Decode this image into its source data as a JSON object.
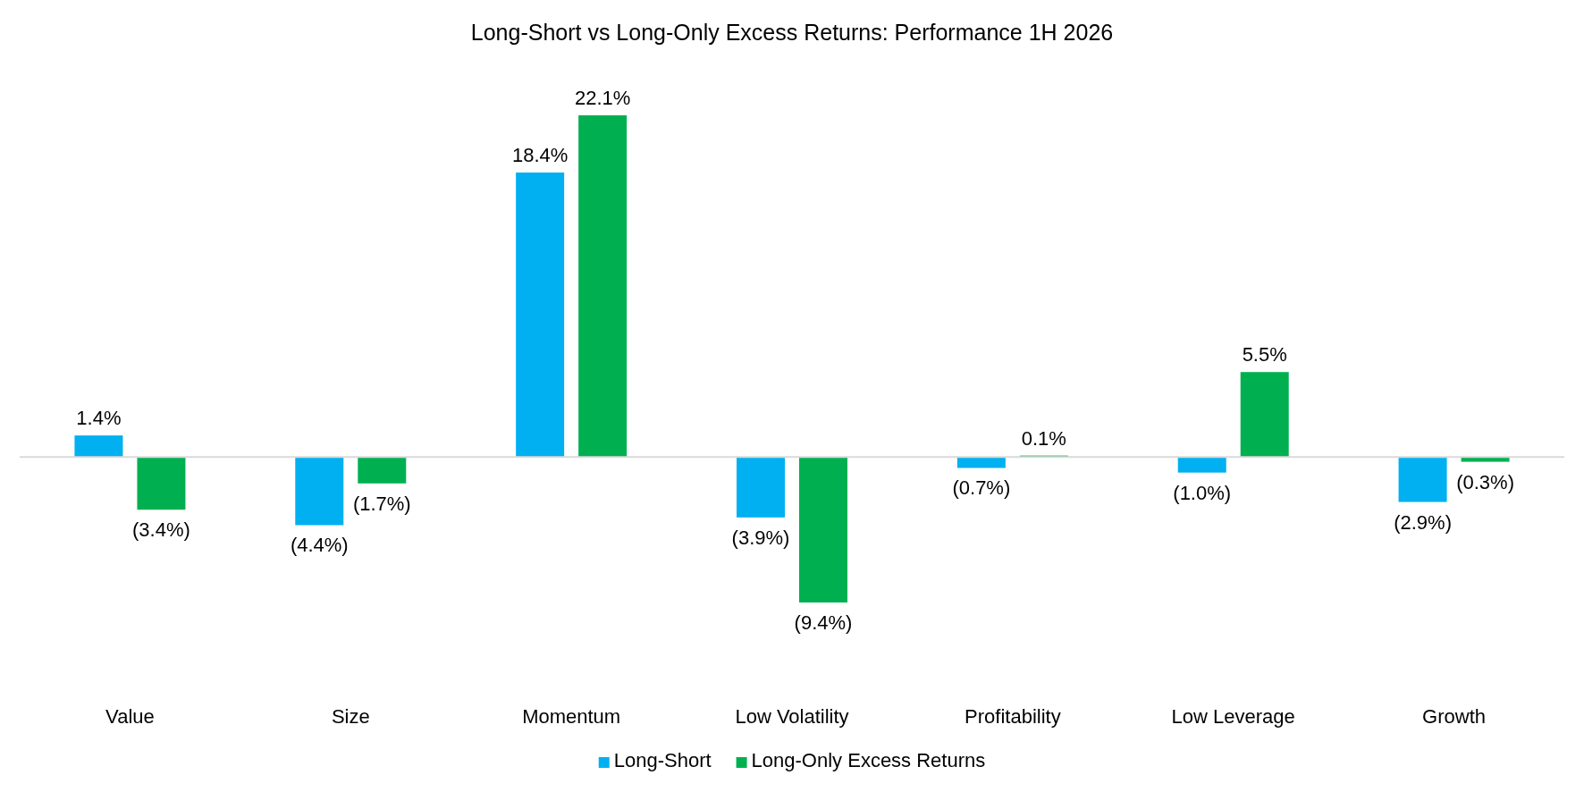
{
  "chart_data": {
    "type": "bar",
    "title": "Long-Short vs Long-Only Excess Returns: Performance 1H 2026",
    "relative": false,
    "categories": [
      "Value",
      "Size",
      "Momentum",
      "Low Volatility",
      "Profitability",
      "Low Leverage",
      "Growth"
    ],
    "series": [
      {
        "name": "Long-Short",
        "color": "#00b0f0",
        "values": [
          1.4,
          -4.4,
          18.4,
          -3.9,
          -0.7,
          -1.0,
          -2.9
        ],
        "value_labels": [
          "1.4%",
          "(4.4%)",
          "18.4%",
          "(3.9%)",
          "(0.7%)",
          "(1.0%)",
          "(2.9%)"
        ]
      },
      {
        "name": "Long-Only Excess Returns",
        "color": "#00b050",
        "values": [
          -3.4,
          -1.7,
          22.1,
          -9.4,
          0.1,
          5.5,
          -0.3
        ],
        "value_labels": [
          "(3.4%)",
          "(1.7%)",
          "22.1%",
          "(9.4%)",
          "0.1%",
          "5.5%",
          "(0.3%)"
        ]
      }
    ],
    "legend": "bottom"
  }
}
